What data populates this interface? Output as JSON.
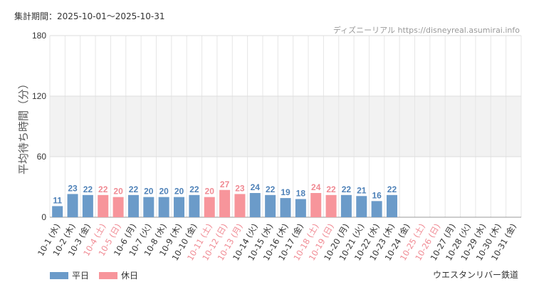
{
  "header": {
    "period": "集計期間：2025-10-01〜2025-10-31",
    "source": "ディズニーリアル https://disneyreal.asumirai.info"
  },
  "footer": {
    "attraction": "ウエスタンリバー鉄道"
  },
  "legend": [
    {
      "label": "平日",
      "color": "#6b9bc9"
    },
    {
      "label": "休日",
      "color": "#f7959b"
    }
  ],
  "chart_data": {
    "type": "bar",
    "ylabel": "平均待ち時間（分）",
    "ylim": [
      0,
      180
    ],
    "yticks": [
      0,
      60,
      120,
      180
    ],
    "grid": true,
    "legend_position": "bottom-left",
    "colors": {
      "weekday": "#6b9bc9",
      "holiday": "#f7959b",
      "holiday_label": "#f08a93",
      "weekday_label": "#4f82b8"
    },
    "categories": [
      "10-1 (水)",
      "10-2 (木)",
      "10-3 (金)",
      "10-4 (土)",
      "10-5 (日)",
      "10-6 (月)",
      "10-7 (火)",
      "10-8 (水)",
      "10-9 (木)",
      "10-10 (金)",
      "10-11 (土)",
      "10-12 (日)",
      "10-13 (月)",
      "10-14 (火)",
      "10-15 (水)",
      "10-16 (木)",
      "10-17 (金)",
      "10-18 (土)",
      "10-19 (日)",
      "10-20 (月)",
      "10-21 (火)",
      "10-22 (水)",
      "10-23 (木)",
      "10-24 (金)",
      "10-25 (土)",
      "10-26 (日)",
      "10-27 (月)",
      "10-28 (火)",
      "10-29 (水)",
      "10-30 (木)",
      "10-31 (金)"
    ],
    "holiday": [
      false,
      false,
      false,
      true,
      true,
      false,
      false,
      false,
      false,
      false,
      true,
      true,
      true,
      false,
      false,
      false,
      false,
      true,
      true,
      false,
      false,
      false,
      false,
      false,
      true,
      true,
      false,
      false,
      false,
      false,
      false
    ],
    "values": [
      11,
      23,
      22,
      22,
      20,
      22,
      20,
      20,
      20,
      22,
      20,
      27,
      23,
      24,
      22,
      19,
      18,
      24,
      22,
      22,
      21,
      16,
      22,
      null,
      null,
      null,
      null,
      null,
      null,
      null,
      null
    ]
  }
}
